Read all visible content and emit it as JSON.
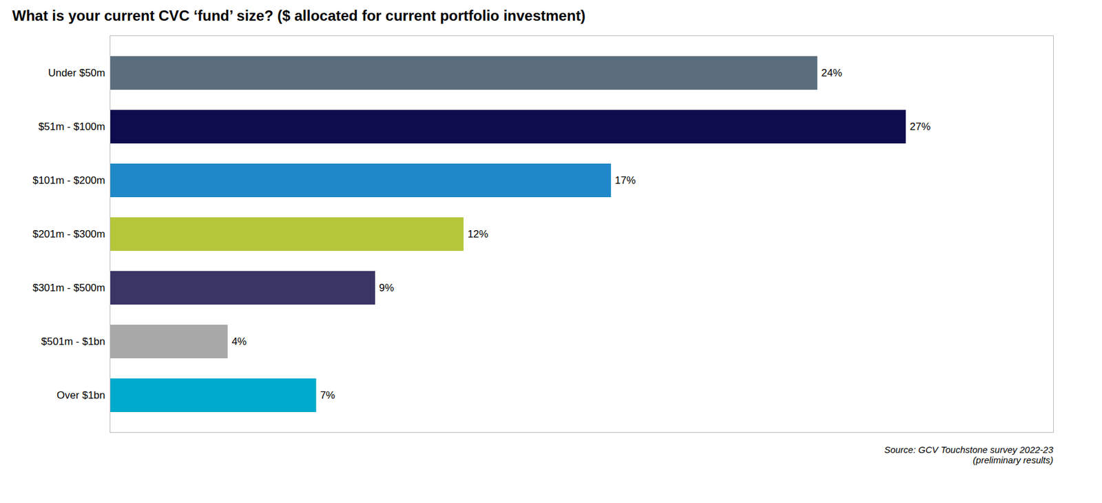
{
  "chart_data": {
    "type": "bar",
    "orientation": "horizontal",
    "title": "What is your current CVC ‘fund’ size? ($ allocated for current portfolio investment)",
    "categories": [
      "Under $50m",
      "$51m - $100m",
      "$101m - $200m",
      "$201m - $300m",
      "$301m - $500m",
      "$501m - $1bn",
      "Over $1bn"
    ],
    "values": [
      24,
      27,
      17,
      12,
      9,
      4,
      7
    ],
    "value_labels": [
      "24%",
      "27%",
      "17%",
      "12%",
      "9%",
      "4%",
      "7%"
    ],
    "data_labels": true,
    "colors": [
      "#5a6e7e",
      "#0d0d4d",
      "#1e88c8",
      "#b5c63b",
      "#3b3566",
      "#a8a8a8",
      "#00aacc"
    ],
    "xlim": [
      0,
      32
    ],
    "xticks": [],
    "tick_labels": "y",
    "grid": false,
    "annotations": [
      "Source: GCV Touchstone survey 2022-23\n(preliminary results)"
    ]
  }
}
